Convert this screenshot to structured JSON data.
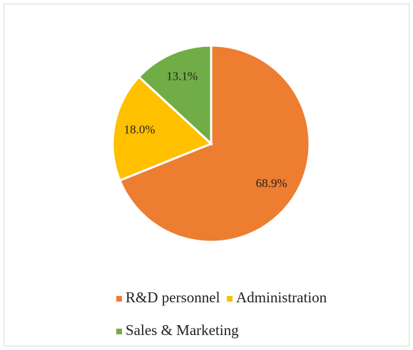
{
  "chart_data": {
    "type": "pie",
    "categories": [
      "R&D personnel",
      "Administration",
      "Sales & Marketing"
    ],
    "values": [
      68.9,
      18.0,
      13.1
    ],
    "value_labels": [
      "68.9%",
      "18.0%",
      "13.1%"
    ],
    "colors": [
      "#ed7d31",
      "#ffc000",
      "#70ad47"
    ],
    "legend": "bottom"
  }
}
